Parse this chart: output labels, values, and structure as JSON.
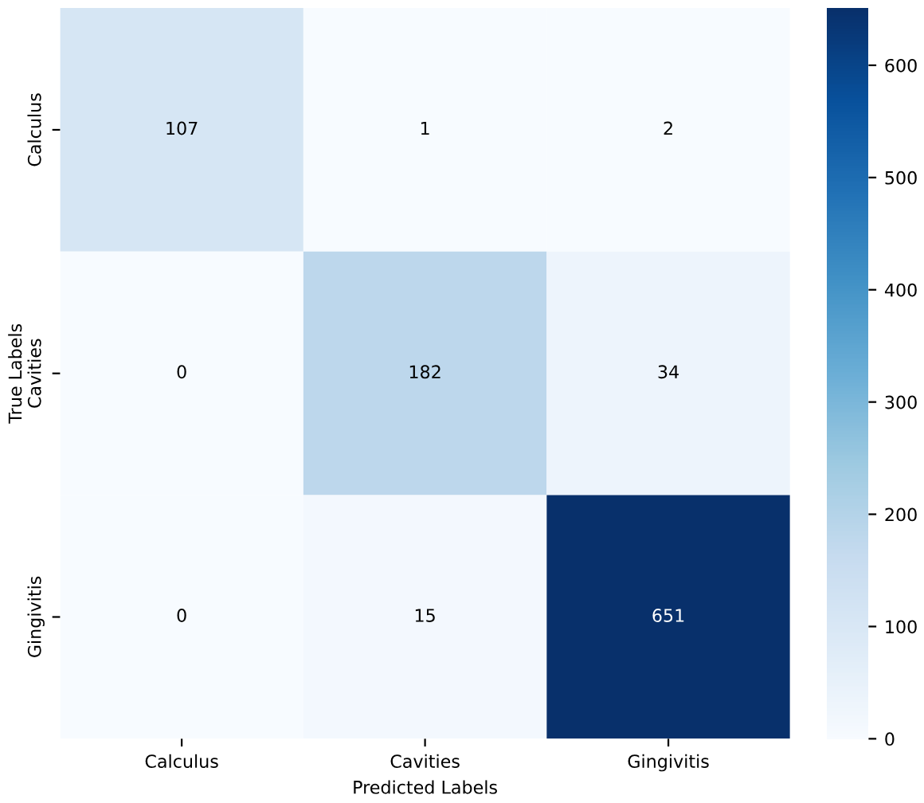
{
  "chart_data": {
    "type": "heatmap",
    "xlabel": "Predicted Labels",
    "ylabel": "True Labels",
    "categories": [
      "Calculus",
      "Cavities",
      "Gingivitis"
    ],
    "y_categories": [
      "Calculus",
      "Cavities",
      "Gingivitis"
    ],
    "cells": [
      [
        107,
        1,
        2
      ],
      [
        0,
        182,
        34
      ],
      [
        0,
        15,
        651
      ]
    ],
    "data_labels": true,
    "clim": [
      0,
      651
    ],
    "cticks": [
      0,
      100,
      200,
      300,
      400,
      500,
      600
    ]
  }
}
